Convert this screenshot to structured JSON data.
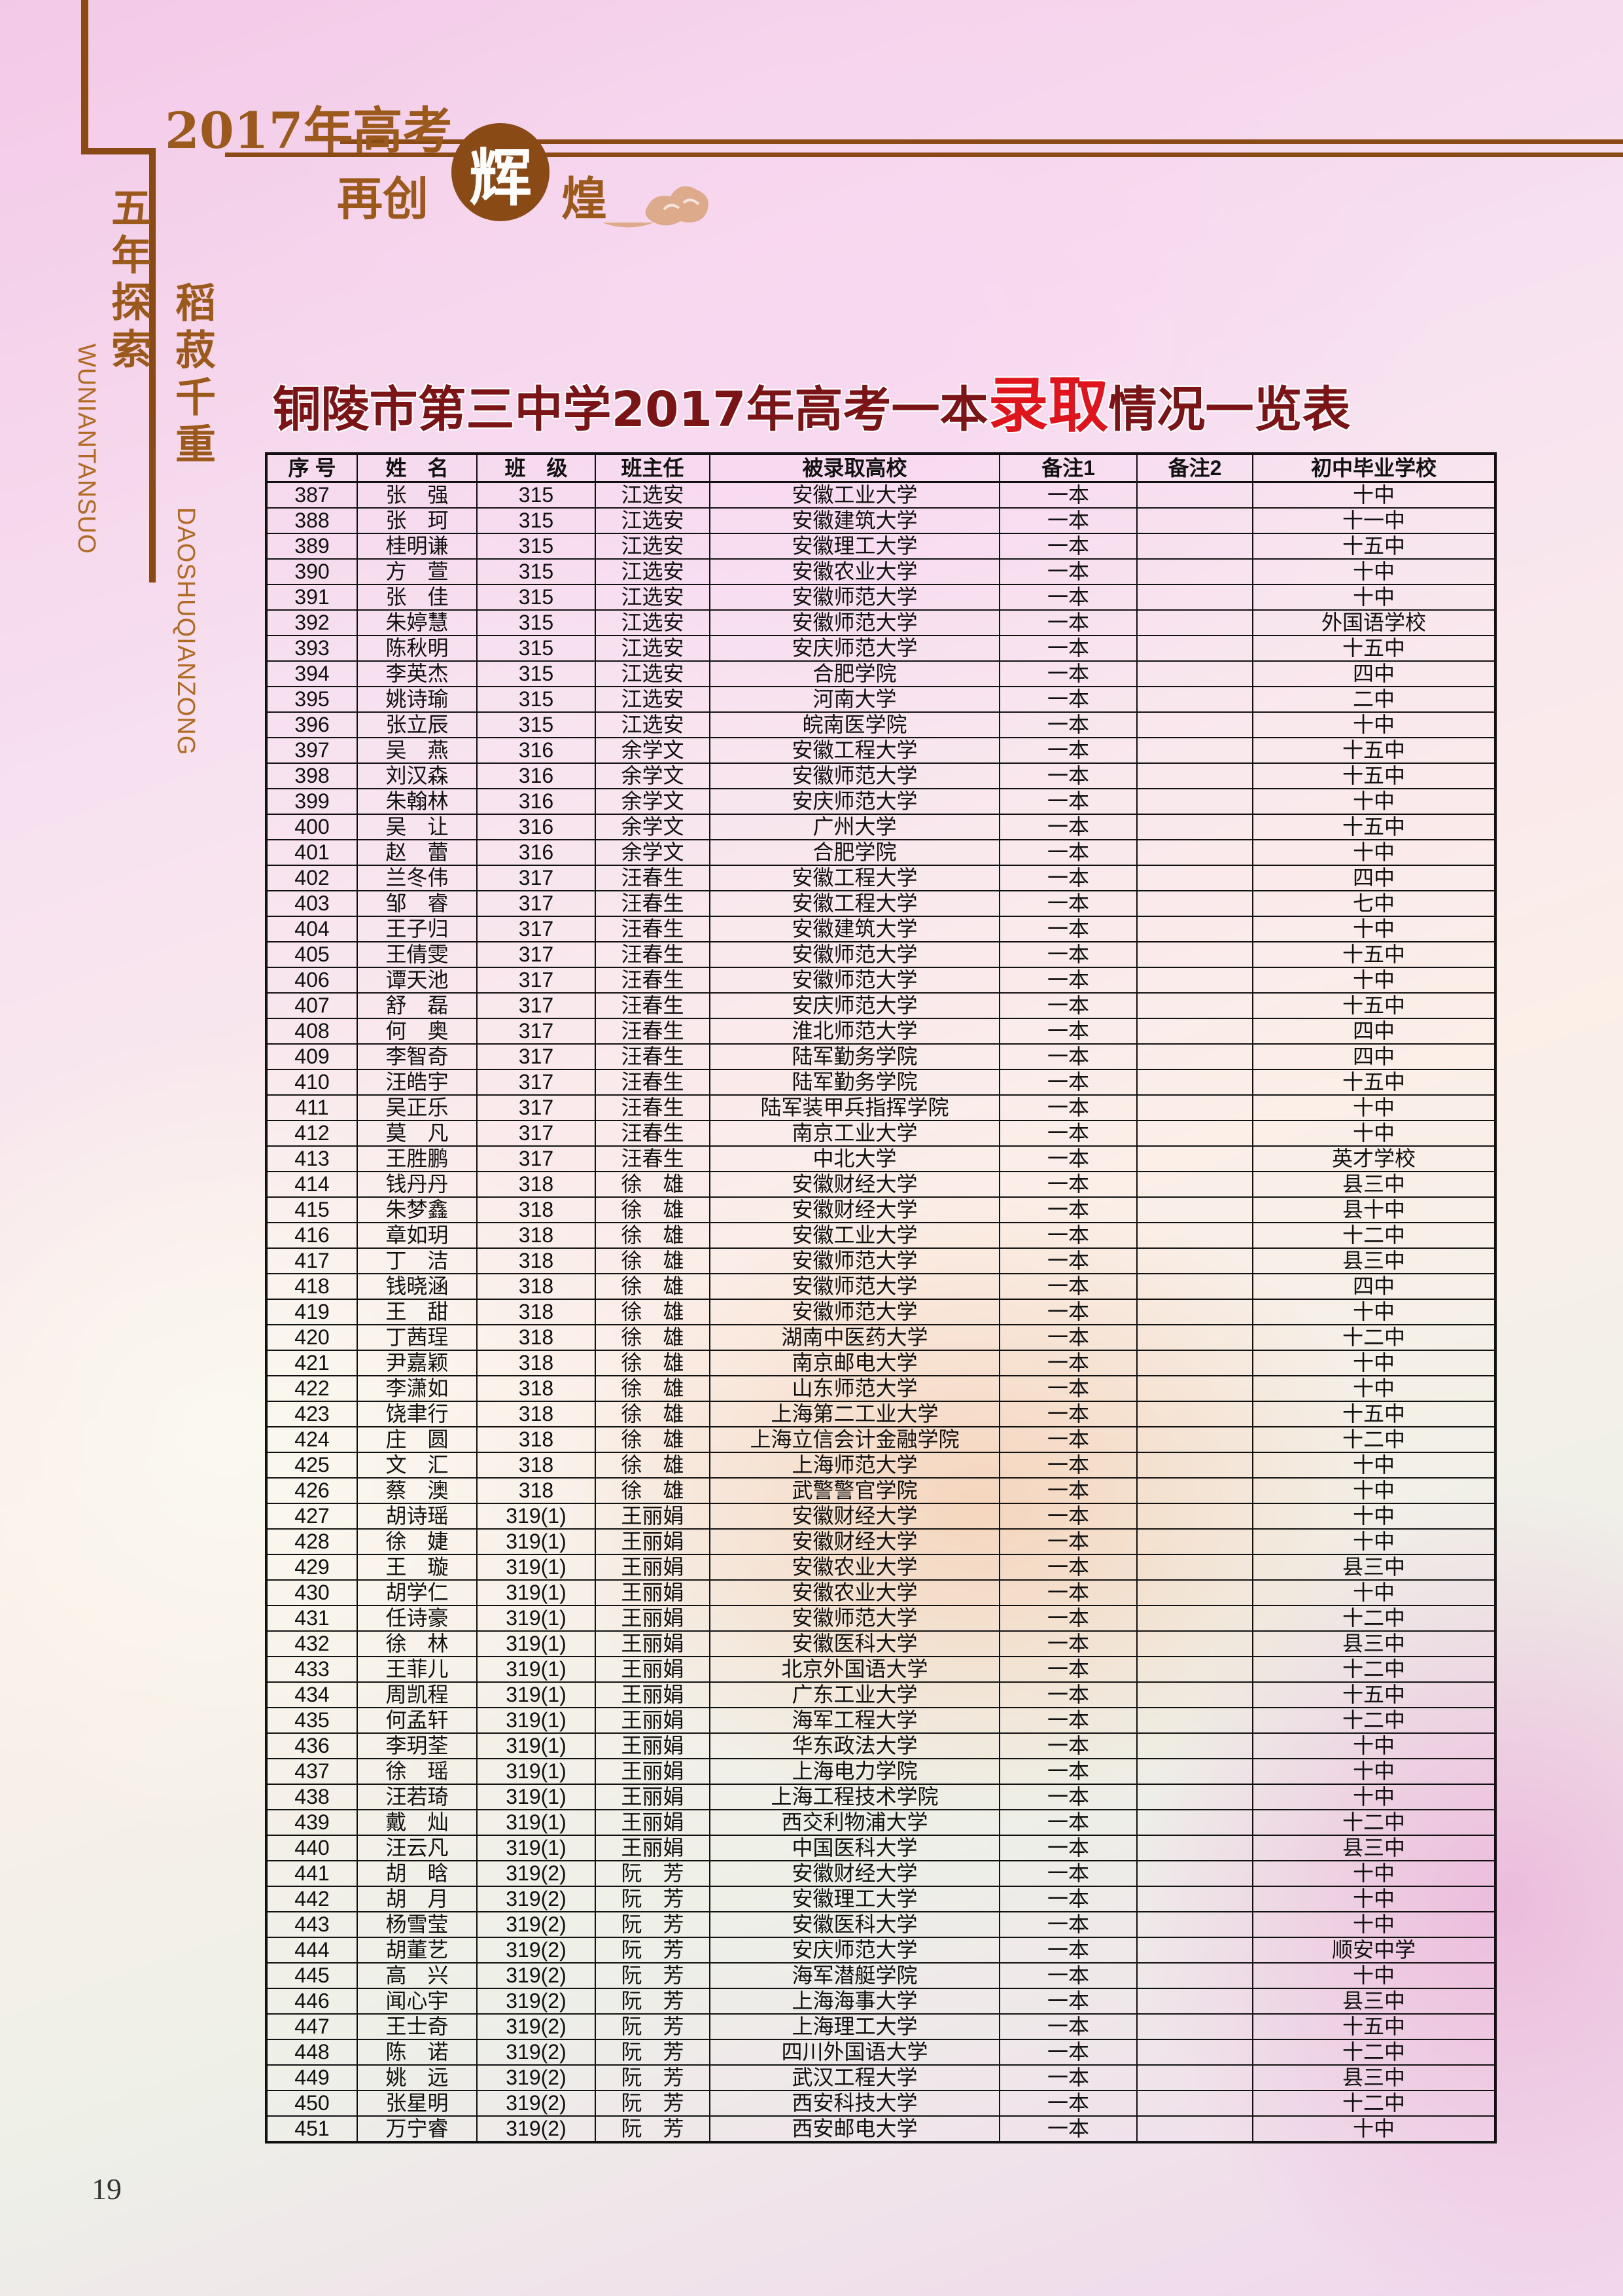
{
  "header": {
    "line1": "2017年高考",
    "line2_a": "再创",
    "line2_circle": "辉",
    "line2_b": "煌",
    "side_cn_1": "五年探索",
    "side_cn_2": "稻菽千重",
    "side_en_1": "WUNIANTANSUO",
    "side_en_2": "DAOSHUQIANZONG"
  },
  "colors": {
    "brand_brown": "#8a4a16",
    "title_dark_red": "#7a1416",
    "title_highlight_red": "#e0141c"
  },
  "title": {
    "before": "铜陵市第三中学2017年高考一本",
    "highlight": "录取",
    "after": "情况一览表"
  },
  "table": {
    "columns": [
      "序 号",
      "姓　名",
      "班　级",
      "班主任",
      "被录取高校",
      "备注1",
      "备注2",
      "初中毕业学校"
    ],
    "rows": [
      [
        "387",
        "张　强",
        "315",
        "江选安",
        "安徽工业大学",
        "一本",
        "",
        "十中"
      ],
      [
        "388",
        "张　珂",
        "315",
        "江选安",
        "安徽建筑大学",
        "一本",
        "",
        "十一中"
      ],
      [
        "389",
        "桂明谦",
        "315",
        "江选安",
        "安徽理工大学",
        "一本",
        "",
        "十五中"
      ],
      [
        "390",
        "方　萱",
        "315",
        "江选安",
        "安徽农业大学",
        "一本",
        "",
        "十中"
      ],
      [
        "391",
        "张　佳",
        "315",
        "江选安",
        "安徽师范大学",
        "一本",
        "",
        "十中"
      ],
      [
        "392",
        "朱婷慧",
        "315",
        "江选安",
        "安徽师范大学",
        "一本",
        "",
        "外国语学校"
      ],
      [
        "393",
        "陈秋明",
        "315",
        "江选安",
        "安庆师范大学",
        "一本",
        "",
        "十五中"
      ],
      [
        "394",
        "李英杰",
        "315",
        "江选安",
        "合肥学院",
        "一本",
        "",
        "四中"
      ],
      [
        "395",
        "姚诗瑜",
        "315",
        "江选安",
        "河南大学",
        "一本",
        "",
        "二中"
      ],
      [
        "396",
        "张立辰",
        "315",
        "江选安",
        "皖南医学院",
        "一本",
        "",
        "十中"
      ],
      [
        "397",
        "吴　燕",
        "316",
        "余学文",
        "安徽工程大学",
        "一本",
        "",
        "十五中"
      ],
      [
        "398",
        "刘汉森",
        "316",
        "余学文",
        "安徽师范大学",
        "一本",
        "",
        "十五中"
      ],
      [
        "399",
        "朱翰林",
        "316",
        "余学文",
        "安庆师范大学",
        "一本",
        "",
        "十中"
      ],
      [
        "400",
        "吴　让",
        "316",
        "余学文",
        "广州大学",
        "一本",
        "",
        "十五中"
      ],
      [
        "401",
        "赵　蕾",
        "316",
        "余学文",
        "合肥学院",
        "一本",
        "",
        "十中"
      ],
      [
        "402",
        "兰冬伟",
        "317",
        "汪春生",
        "安徽工程大学",
        "一本",
        "",
        "四中"
      ],
      [
        "403",
        "邹　睿",
        "317",
        "汪春生",
        "安徽工程大学",
        "一本",
        "",
        "七中"
      ],
      [
        "404",
        "王子归",
        "317",
        "汪春生",
        "安徽建筑大学",
        "一本",
        "",
        "十中"
      ],
      [
        "405",
        "王倩雯",
        "317",
        "汪春生",
        "安徽师范大学",
        "一本",
        "",
        "十五中"
      ],
      [
        "406",
        "谭天池",
        "317",
        "汪春生",
        "安徽师范大学",
        "一本",
        "",
        "十中"
      ],
      [
        "407",
        "舒　磊",
        "317",
        "汪春生",
        "安庆师范大学",
        "一本",
        "",
        "十五中"
      ],
      [
        "408",
        "何　奥",
        "317",
        "汪春生",
        "淮北师范大学",
        "一本",
        "",
        "四中"
      ],
      [
        "409",
        "李智奇",
        "317",
        "汪春生",
        "陆军勤务学院",
        "一本",
        "",
        "四中"
      ],
      [
        "410",
        "汪皓宇",
        "317",
        "汪春生",
        "陆军勤务学院",
        "一本",
        "",
        "十五中"
      ],
      [
        "411",
        "吴正乐",
        "317",
        "汪春生",
        "陆军装甲兵指挥学院",
        "一本",
        "",
        "十中"
      ],
      [
        "412",
        "莫　凡",
        "317",
        "汪春生",
        "南京工业大学",
        "一本",
        "",
        "十中"
      ],
      [
        "413",
        "王胜鹏",
        "317",
        "汪春生",
        "中北大学",
        "一本",
        "",
        "英才学校"
      ],
      [
        "414",
        "钱丹丹",
        "318",
        "徐　雄",
        "安徽财经大学",
        "一本",
        "",
        "县三中"
      ],
      [
        "415",
        "朱梦鑫",
        "318",
        "徐　雄",
        "安徽财经大学",
        "一本",
        "",
        "县十中"
      ],
      [
        "416",
        "章如玥",
        "318",
        "徐　雄",
        "安徽工业大学",
        "一本",
        "",
        "十二中"
      ],
      [
        "417",
        "丁　洁",
        "318",
        "徐　雄",
        "安徽师范大学",
        "一本",
        "",
        "县三中"
      ],
      [
        "418",
        "钱晓涵",
        "318",
        "徐　雄",
        "安徽师范大学",
        "一本",
        "",
        "四中"
      ],
      [
        "419",
        "王　甜",
        "318",
        "徐　雄",
        "安徽师范大学",
        "一本",
        "",
        "十中"
      ],
      [
        "420",
        "丁茜珵",
        "318",
        "徐　雄",
        "湖南中医药大学",
        "一本",
        "",
        "十二中"
      ],
      [
        "421",
        "尹嘉颖",
        "318",
        "徐　雄",
        "南京邮电大学",
        "一本",
        "",
        "十中"
      ],
      [
        "422",
        "李潇如",
        "318",
        "徐　雄",
        "山东师范大学",
        "一本",
        "",
        "十中"
      ],
      [
        "423",
        "饶聿行",
        "318",
        "徐　雄",
        "上海第二工业大学",
        "一本",
        "",
        "十五中"
      ],
      [
        "424",
        "庄　圆",
        "318",
        "徐　雄",
        "上海立信会计金融学院",
        "一本",
        "",
        "十二中"
      ],
      [
        "425",
        "文　汇",
        "318",
        "徐　雄",
        "上海师范大学",
        "一本",
        "",
        "十中"
      ],
      [
        "426",
        "蔡　澳",
        "318",
        "徐　雄",
        "武警警官学院",
        "一本",
        "",
        "十中"
      ],
      [
        "427",
        "胡诗瑶",
        "319(1)",
        "王丽娟",
        "安徽财经大学",
        "一本",
        "",
        "十中"
      ],
      [
        "428",
        "徐　婕",
        "319(1)",
        "王丽娟",
        "安徽财经大学",
        "一本",
        "",
        "十中"
      ],
      [
        "429",
        "王　璇",
        "319(1)",
        "王丽娟",
        "安徽农业大学",
        "一本",
        "",
        "县三中"
      ],
      [
        "430",
        "胡学仁",
        "319(1)",
        "王丽娟",
        "安徽农业大学",
        "一本",
        "",
        "十中"
      ],
      [
        "431",
        "任诗豪",
        "319(1)",
        "王丽娟",
        "安徽师范大学",
        "一本",
        "",
        "十二中"
      ],
      [
        "432",
        "徐　林",
        "319(1)",
        "王丽娟",
        "安徽医科大学",
        "一本",
        "",
        "县三中"
      ],
      [
        "433",
        "王菲儿",
        "319(1)",
        "王丽娟",
        "北京外国语大学",
        "一本",
        "",
        "十二中"
      ],
      [
        "434",
        "周凯程",
        "319(1)",
        "王丽娟",
        "广东工业大学",
        "一本",
        "",
        "十五中"
      ],
      [
        "435",
        "何孟轩",
        "319(1)",
        "王丽娟",
        "海军工程大学",
        "一本",
        "",
        "十二中"
      ],
      [
        "436",
        "李玥荃",
        "319(1)",
        "王丽娟",
        "华东政法大学",
        "一本",
        "",
        "十中"
      ],
      [
        "437",
        "徐　瑶",
        "319(1)",
        "王丽娟",
        "上海电力学院",
        "一本",
        "",
        "十中"
      ],
      [
        "438",
        "汪若琦",
        "319(1)",
        "王丽娟",
        "上海工程技术学院",
        "一本",
        "",
        "十中"
      ],
      [
        "439",
        "戴　灿",
        "319(1)",
        "王丽娟",
        "西交利物浦大学",
        "一本",
        "",
        "十二中"
      ],
      [
        "440",
        "汪云凡",
        "319(1)",
        "王丽娟",
        "中国医科大学",
        "一本",
        "",
        "县三中"
      ],
      [
        "441",
        "胡　晗",
        "319(2)",
        "阮　芳",
        "安徽财经大学",
        "一本",
        "",
        "十中"
      ],
      [
        "442",
        "胡　月",
        "319(2)",
        "阮　芳",
        "安徽理工大学",
        "一本",
        "",
        "十中"
      ],
      [
        "443",
        "杨雪莹",
        "319(2)",
        "阮　芳",
        "安徽医科大学",
        "一本",
        "",
        "十中"
      ],
      [
        "444",
        "胡董艺",
        "319(2)",
        "阮　芳",
        "安庆师范大学",
        "一本",
        "",
        "顺安中学"
      ],
      [
        "445",
        "高　兴",
        "319(2)",
        "阮　芳",
        "海军潜艇学院",
        "一本",
        "",
        "十中"
      ],
      [
        "446",
        "闻心宇",
        "319(2)",
        "阮　芳",
        "上海海事大学",
        "一本",
        "",
        "县三中"
      ],
      [
        "447",
        "王士奇",
        "319(2)",
        "阮　芳",
        "上海理工大学",
        "一本",
        "",
        "十五中"
      ],
      [
        "448",
        "陈　诺",
        "319(2)",
        "阮　芳",
        "四川外国语大学",
        "一本",
        "",
        "十二中"
      ],
      [
        "449",
        "姚　远",
        "319(2)",
        "阮　芳",
        "武汉工程大学",
        "一本",
        "",
        "县三中"
      ],
      [
        "450",
        "张星明",
        "319(2)",
        "阮　芳",
        "西安科技大学",
        "一本",
        "",
        "十二中"
      ],
      [
        "451",
        "万宁睿",
        "319(2)",
        "阮　芳",
        "西安邮电大学",
        "一本",
        "",
        "十中"
      ]
    ]
  },
  "page_number": "19"
}
